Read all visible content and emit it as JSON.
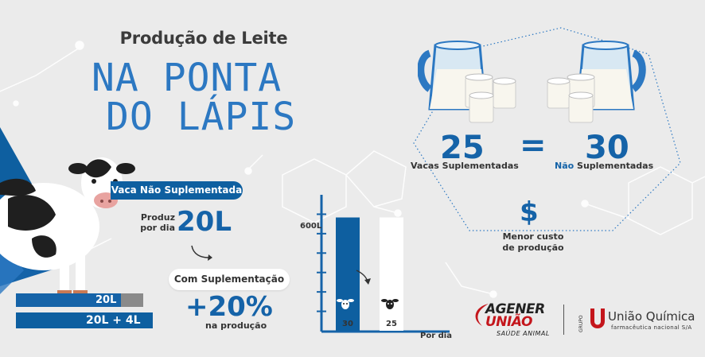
{
  "title": {
    "small": "Produção de Leite",
    "line1": "NA PONTA",
    "line2": "DO LÁPIS"
  },
  "left": {
    "tag": "Vaca Não Suplementada",
    "produz_l1": "Produz",
    "produz_l2": "por dia",
    "amount": "20L",
    "pill": "Com Suplementação",
    "percent": "+20%",
    "percent_label": "na produção",
    "bar1_label": "20L",
    "bar2_label": "20L + 4L"
  },
  "chart_data": {
    "type": "bar",
    "categories": [
      "30",
      "25"
    ],
    "values": [
      600,
      600
    ],
    "ylabel": "600L",
    "xlabel": "Por dia",
    "ylim": [
      0,
      720
    ]
  },
  "right": {
    "left_number": "25",
    "equals": "=",
    "right_number": "30",
    "left_label": "Vacas Suplementadas",
    "right_label_nao": "Não",
    "right_label_rest": " Suplementadas",
    "currency_symbol": "$",
    "cost_l1": "Menor custo",
    "cost_l2": "de produção"
  },
  "logos": {
    "agener_l1": "AGENER",
    "agener_l2": "UNIÃO",
    "agener_sub": "SAÚDE ANIMAL",
    "grupo": "GRUPO",
    "uq_name": "União Química",
    "uq_sub": "farmacêutica nacional S/A"
  },
  "colors": {
    "blue": "#1563a8",
    "dark_blue": "#0e5fa0",
    "background": "#ebebeb",
    "brand_red": "#c4161c"
  }
}
